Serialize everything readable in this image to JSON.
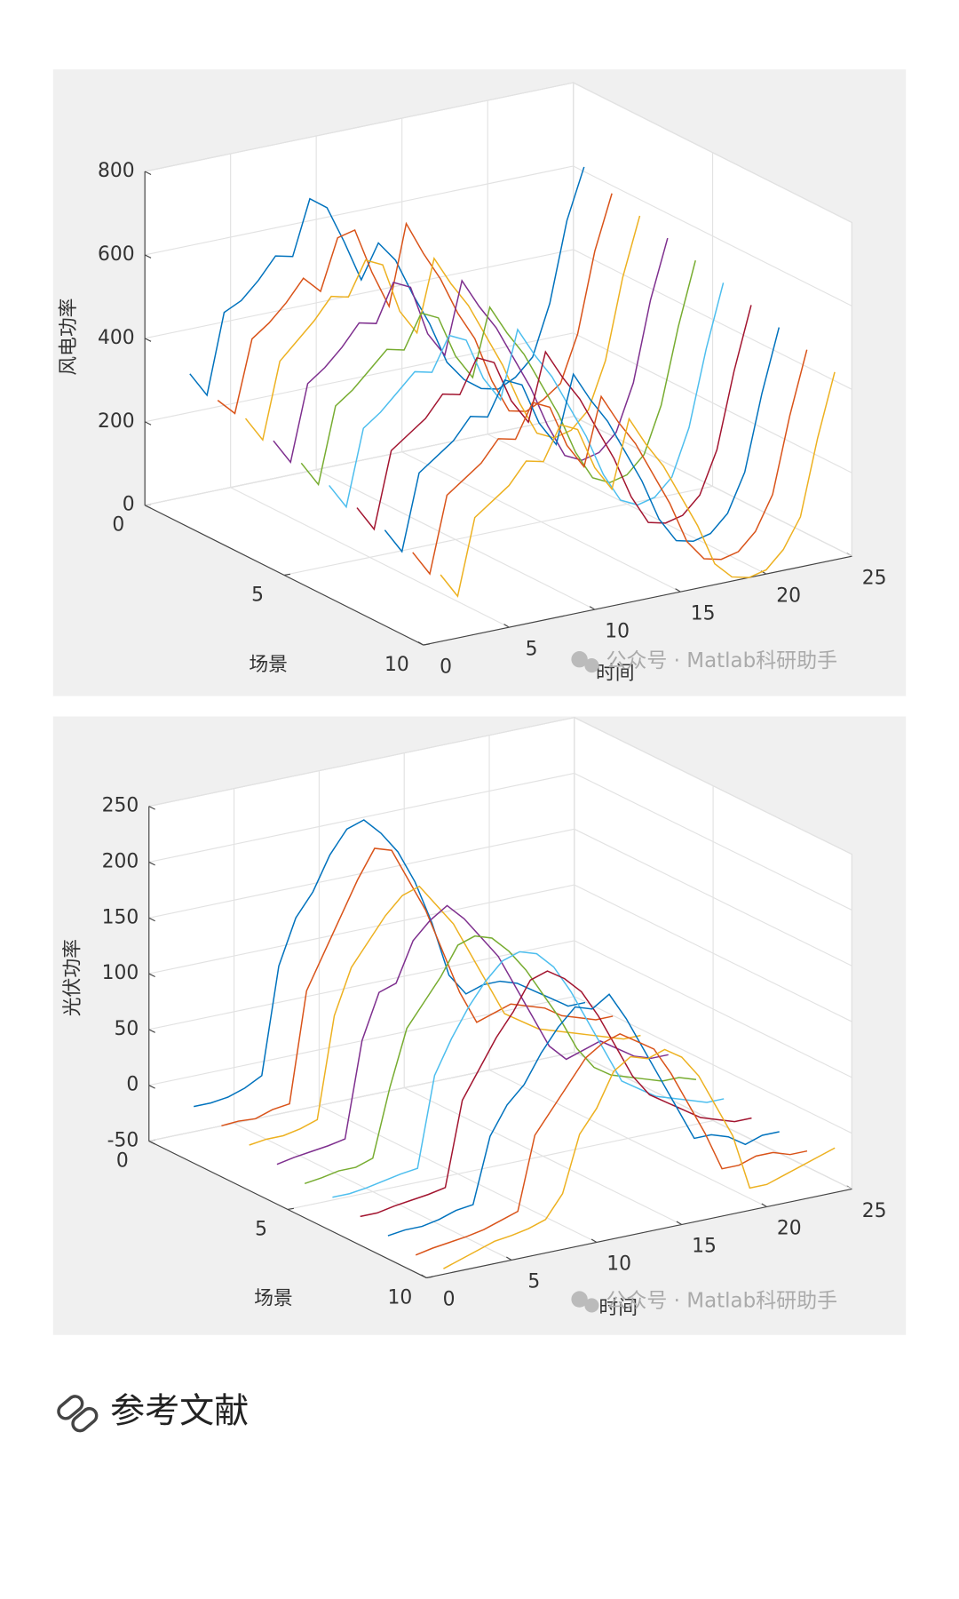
{
  "chart_data": [
    {
      "type": "line3d",
      "zlabel": "风电功率",
      "xlabel": "时间",
      "ylabel": "场景",
      "watermark": "公众号 · Matlab科研助手",
      "xlim": [
        0,
        25
      ],
      "xticks": [
        0,
        5,
        10,
        15,
        20,
        25
      ],
      "ylim": [
        0,
        10
      ],
      "yticks": [
        0,
        5,
        10
      ],
      "zlim": [
        0,
        800
      ],
      "zticks": [
        0,
        200,
        400,
        600,
        800
      ],
      "grid": true,
      "x": [
        1,
        2,
        3,
        4,
        5,
        6,
        7,
        8,
        9,
        10,
        11,
        12,
        13,
        14,
        15,
        16,
        17,
        18,
        19,
        20,
        21,
        22,
        23,
        24
      ],
      "series": [
        {
          "y": 1,
          "color": "#0072BD",
          "values": [
            340,
            280,
            470,
            490,
            530,
            580,
            570,
            700,
            670,
            580,
            480,
            560,
            510,
            420,
            340,
            240,
            190,
            160,
            150,
            170,
            210,
            330,
            520,
            640
          ]
        },
        {
          "y": 2,
          "color": "#D95319",
          "values": [
            310,
            270,
            440,
            470,
            510,
            560,
            520,
            640,
            650,
            540,
            450,
            640,
            560,
            490,
            400,
            330,
            220,
            140,
            130,
            150,
            180,
            290,
            480,
            610
          ]
        },
        {
          "y": 3,
          "color": "#EDB120",
          "values": [
            300,
            240,
            420,
            460,
            500,
            550,
            540,
            620,
            600,
            480,
            420,
            590,
            520,
            460,
            380,
            300,
            200,
            120,
            100,
            110,
            150,
            260,
            450,
            590
          ]
        },
        {
          "y": 4,
          "color": "#7E2F8E",
          "values": [
            280,
            220,
            400,
            430,
            470,
            520,
            510,
            600,
            580,
            460,
            400,
            570,
            500,
            440,
            360,
            280,
            180,
            100,
            80,
            90,
            130,
            240,
            430,
            570
          ]
        },
        {
          "y": 5,
          "color": "#77AC30",
          "values": [
            260,
            200,
            380,
            410,
            450,
            490,
            480,
            560,
            540,
            440,
            380,
            540,
            470,
            410,
            330,
            250,
            150,
            80,
            60,
            70,
            110,
            220,
            400,
            550
          ]
        },
        {
          "y": 6,
          "color": "#4DBEEE",
          "values": [
            240,
            180,
            360,
            390,
            430,
            470,
            460,
            540,
            520,
            420,
            360,
            520,
            450,
            390,
            310,
            230,
            130,
            60,
            40,
            50,
            90,
            200,
            380,
            530
          ]
        },
        {
          "y": 7,
          "color": "#A2142F",
          "values": [
            220,
            160,
            340,
            370,
            400,
            450,
            440,
            520,
            500,
            400,
            340,
            500,
            430,
            370,
            290,
            210,
            110,
            40,
            30,
            40,
            80,
            180,
            360,
            510
          ]
        },
        {
          "y": 8,
          "color": "#0072BD",
          "values": [
            200,
            140,
            320,
            350,
            380,
            430,
            420,
            500,
            480,
            380,
            320,
            480,
            410,
            350,
            270,
            190,
            90,
            30,
            20,
            30,
            70,
            160,
            340,
            490
          ]
        },
        {
          "y": 9,
          "color": "#D95319",
          "values": [
            180,
            120,
            300,
            330,
            360,
            410,
            400,
            480,
            460,
            360,
            300,
            460,
            390,
            330,
            250,
            170,
            70,
            20,
            10,
            20,
            60,
            140,
            320,
            470
          ]
        },
        {
          "y": 10,
          "color": "#EDB120",
          "values": [
            160,
            100,
            280,
            310,
            340,
            390,
            380,
            460,
            440,
            340,
            280,
            440,
            370,
            310,
            230,
            150,
            50,
            10,
            0,
            10,
            50,
            120,
            300,
            450
          ]
        }
      ]
    },
    {
      "type": "line3d",
      "zlabel": "光伏功率",
      "xlabel": "时间",
      "ylabel": "场景",
      "watermark": "公众号 · Matlab科研助手",
      "xlim": [
        0,
        25
      ],
      "xticks": [
        0,
        5,
        10,
        15,
        20,
        25
      ],
      "ylim": [
        0,
        10
      ],
      "yticks": [
        0,
        5,
        10
      ],
      "zlim": [
        -50,
        250
      ],
      "zticks": [
        -50,
        0,
        50,
        100,
        150,
        200,
        250
      ],
      "grid": true,
      "x": [
        1,
        2,
        3,
        4,
        5,
        6,
        7,
        8,
        9,
        10,
        11,
        12,
        13,
        14,
        15,
        16,
        17,
        18,
        19,
        20,
        21,
        22,
        23,
        24
      ],
      "series": [
        {
          "y": 1,
          "color": "#0072BD",
          "values": [
            -10,
            -10,
            -8,
            -3,
            5,
            100,
            140,
            160,
            190,
            210,
            215,
            200,
            180,
            150,
            110,
            60,
            40,
            45,
            45,
            40,
            30,
            20,
            10,
            10
          ]
        },
        {
          "y": 2,
          "color": "#D95319",
          "values": [
            -15,
            -14,
            -15,
            -10,
            -8,
            90,
            120,
            150,
            180,
            205,
            200,
            170,
            140,
            100,
            60,
            30,
            35,
            40,
            35,
            30,
            20,
            15,
            10,
            10
          ]
        },
        {
          "y": 3,
          "color": "#EDB120",
          "values": [
            -20,
            -18,
            -18,
            -15,
            -10,
            80,
            120,
            140,
            160,
            175,
            180,
            160,
            140,
            110,
            80,
            50,
            40,
            30,
            25,
            20,
            15,
            10,
            5,
            5
          ]
        },
        {
          "y": 4,
          "color": "#7E2F8E",
          "values": [
            -25,
            -22,
            -20,
            -18,
            -15,
            70,
            110,
            115,
            150,
            165,
            175,
            160,
            140,
            120,
            90,
            60,
            30,
            15,
            20,
            25,
            15,
            5,
            0,
            0
          ]
        },
        {
          "y": 5,
          "color": "#77AC30",
          "values": [
            -30,
            -28,
            -25,
            -25,
            -20,
            40,
            90,
            110,
            130,
            155,
            160,
            155,
            140,
            120,
            95,
            70,
            40,
            20,
            10,
            5,
            0,
            -5,
            -5,
            -10
          ]
        },
        {
          "y": 6,
          "color": "#4DBEEE",
          "values": [
            -30,
            -30,
            -28,
            -25,
            -22,
            -20,
            60,
            90,
            115,
            135,
            150,
            155,
            150,
            135,
            110,
            80,
            50,
            20,
            10,
            0,
            -5,
            -10,
            -15,
            -15
          ]
        },
        {
          "y": 7,
          "color": "#A2142F",
          "values": [
            -35,
            -35,
            -32,
            -30,
            -28,
            -25,
            50,
            75,
            100,
            120,
            145,
            150,
            140,
            125,
            100,
            70,
            40,
            20,
            10,
            0,
            -10,
            -15,
            -20,
            -20
          ]
        },
        {
          "y": 8,
          "color": "#0072BD",
          "values": [
            -40,
            -38,
            -38,
            -35,
            -30,
            -28,
            30,
            55,
            70,
            95,
            115,
            130,
            125,
            135,
            110,
            80,
            50,
            20,
            -10,
            -10,
            -15,
            -25,
            -20,
            -20
          ]
        },
        {
          "y": 9,
          "color": "#D95319",
          "values": [
            -45,
            -42,
            -40,
            -38,
            -35,
            -30,
            -25,
            40,
            60,
            80,
            100,
            110,
            115,
            105,
            95,
            70,
            40,
            10,
            -25,
            -25,
            -20,
            -20,
            -25,
            -25
          ]
        },
        {
          "y": 10,
          "color": "#EDB120",
          "values": [
            -45,
            -40,
            -35,
            -30,
            -28,
            -25,
            -20,
            0,
            50,
            70,
            100,
            110,
            105,
            110,
            100,
            80,
            50,
            20,
            -30,
            -30,
            -25,
            -20,
            -15,
            -10
          ]
        }
      ]
    }
  ],
  "heading": "参考文献"
}
